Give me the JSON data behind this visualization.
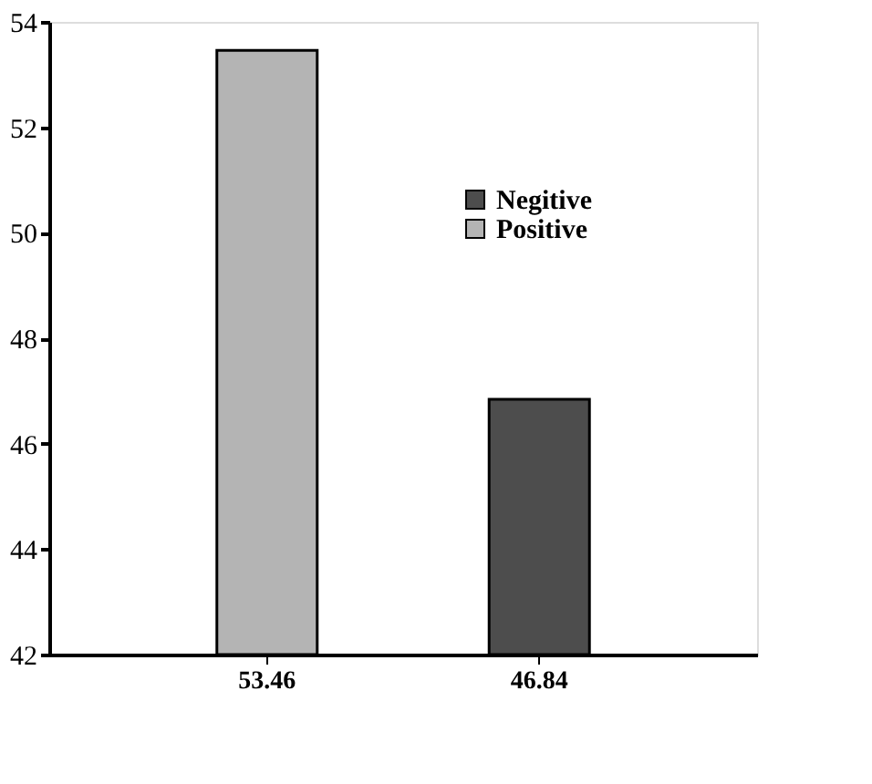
{
  "chart_data": {
    "type": "bar",
    "categories": [
      "53.46",
      "46.84"
    ],
    "series": [
      {
        "name": "Negitive",
        "color": "#4d4d4d",
        "values": [
          null,
          46.84
        ]
      },
      {
        "name": "Positive",
        "color": "#b4b4b4",
        "values": [
          53.46,
          null
        ]
      }
    ],
    "ylim": [
      42,
      54
    ],
    "yticks": [
      42,
      44,
      46,
      48,
      50,
      52,
      54
    ],
    "grid": false,
    "legend": "top right"
  }
}
